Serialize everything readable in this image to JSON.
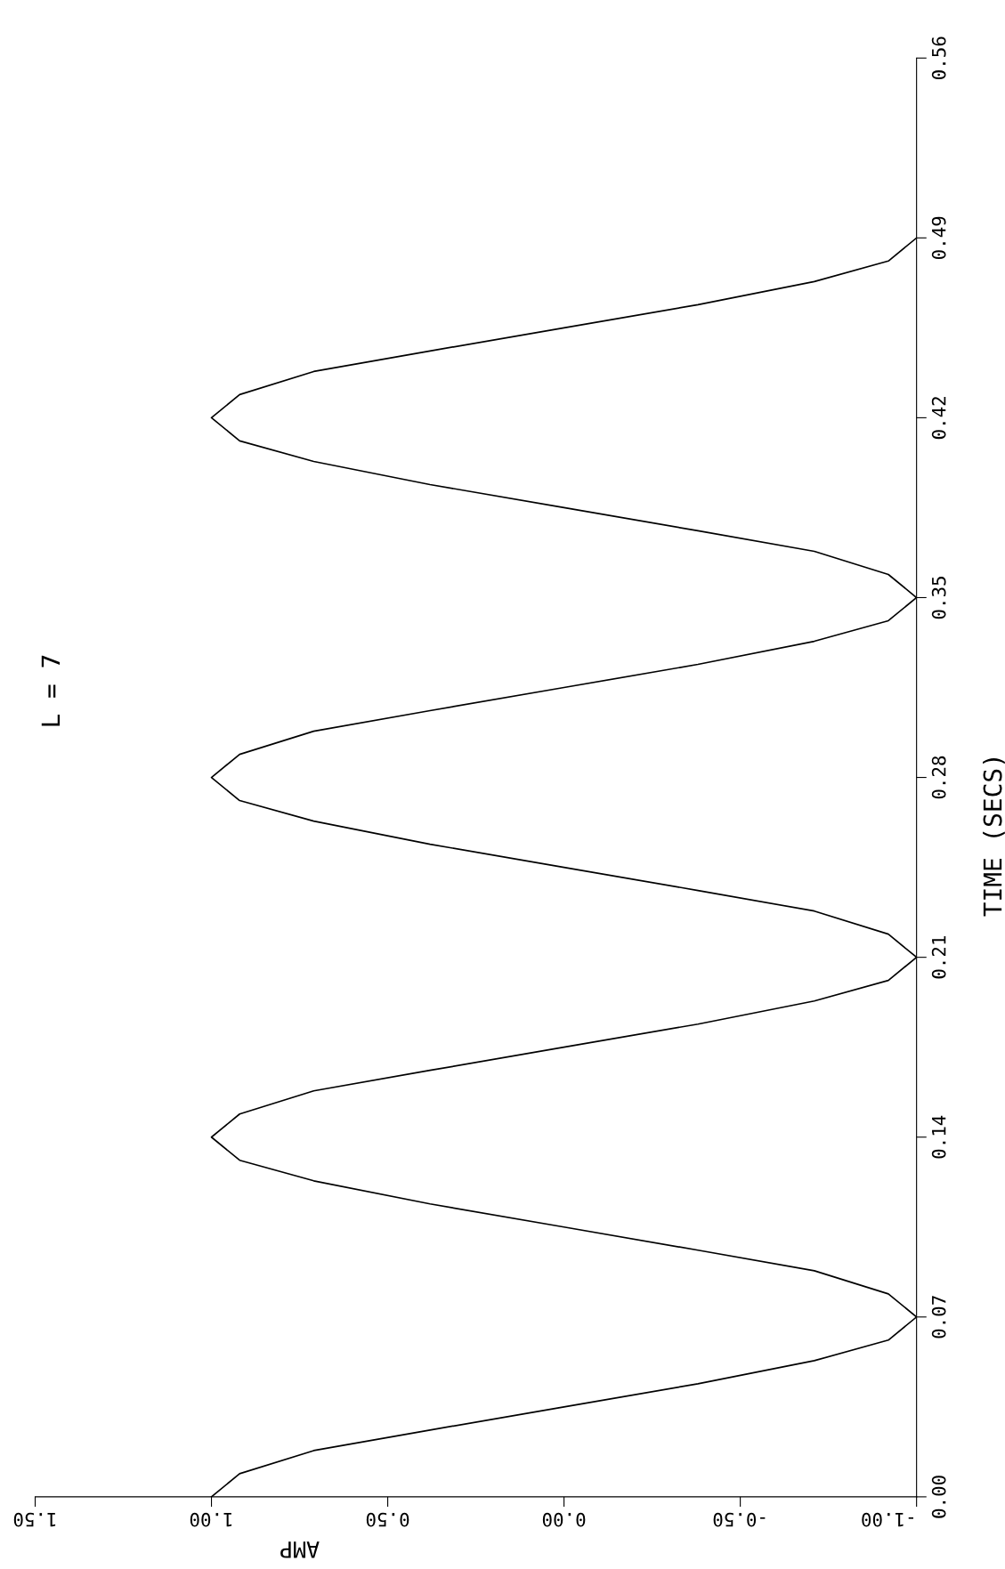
{
  "chart_data": {
    "type": "line",
    "title": "L = 7",
    "xlabel": "AMP",
    "ylabel": "TIME (SECS)",
    "series": [
      {
        "color": "#000000",
        "x": [
          1,
          0.92,
          0.71,
          0.38,
          0,
          -0.38,
          -0.71,
          -0.92,
          -1,
          -0.92,
          -0.71,
          -0.38,
          0,
          0.38,
          0.71,
          0.92,
          1,
          0.92,
          0.71,
          0.38,
          0,
          -0.38,
          -0.71,
          -0.92,
          -1,
          -0.92,
          -0.71,
          -0.38,
          0,
          0.38,
          0.71,
          0.92,
          1,
          0.92,
          0.71,
          0.38,
          0,
          -0.38,
          -0.71,
          -0.92,
          -1,
          -0.92,
          -0.71,
          -0.38,
          0,
          0.38,
          0.71,
          0.92,
          1,
          0.92,
          0.71,
          0.38,
          0,
          -0.38,
          -0.71,
          -0.92,
          -1
        ],
        "values": [
          0,
          0.009,
          0.018,
          0.026,
          0.035,
          0.044,
          0.053,
          0.061,
          0.07,
          0.079,
          0.088,
          0.096,
          0.105,
          0.114,
          0.123,
          0.131,
          0.14,
          0.149,
          0.158,
          0.166,
          0.175,
          0.184,
          0.193,
          0.201,
          0.21,
          0.219,
          0.228,
          0.236,
          0.245,
          0.254,
          0.263,
          0.271,
          0.28,
          0.289,
          0.298,
          0.306,
          0.315,
          0.324,
          0.333,
          0.341,
          0.35,
          0.359,
          0.368,
          0.376,
          0.385,
          0.394,
          0.403,
          0.411,
          0.42,
          0.429,
          0.438,
          0.446,
          0.455,
          0.464,
          0.473,
          0.481,
          0.49
        ]
      }
    ],
    "ylim": [
      0,
      0.56
    ],
    "yticks": [
      {
        "value": 0,
        "label": "0.00"
      },
      0.07,
      0.14,
      0.21,
      0.28,
      0.35,
      0.42,
      0.49,
      0.56
    ],
    "xlim": [
      1.5,
      -1
    ],
    "xticks": [
      {
        "value": -1,
        "label": "-1.00"
      },
      {
        "value": -0.5,
        "label": "-0.50"
      },
      {
        "value": 0,
        "label": "0.00"
      },
      {
        "value": 0.5,
        "label": "0.50"
      },
      {
        "value": 1,
        "label": "1.00"
      },
      {
        "value": 1.5,
        "label": "1.50"
      }
    ],
    "grid": false,
    "legend": false,
    "marker": "none",
    "line_style": "solid"
  }
}
